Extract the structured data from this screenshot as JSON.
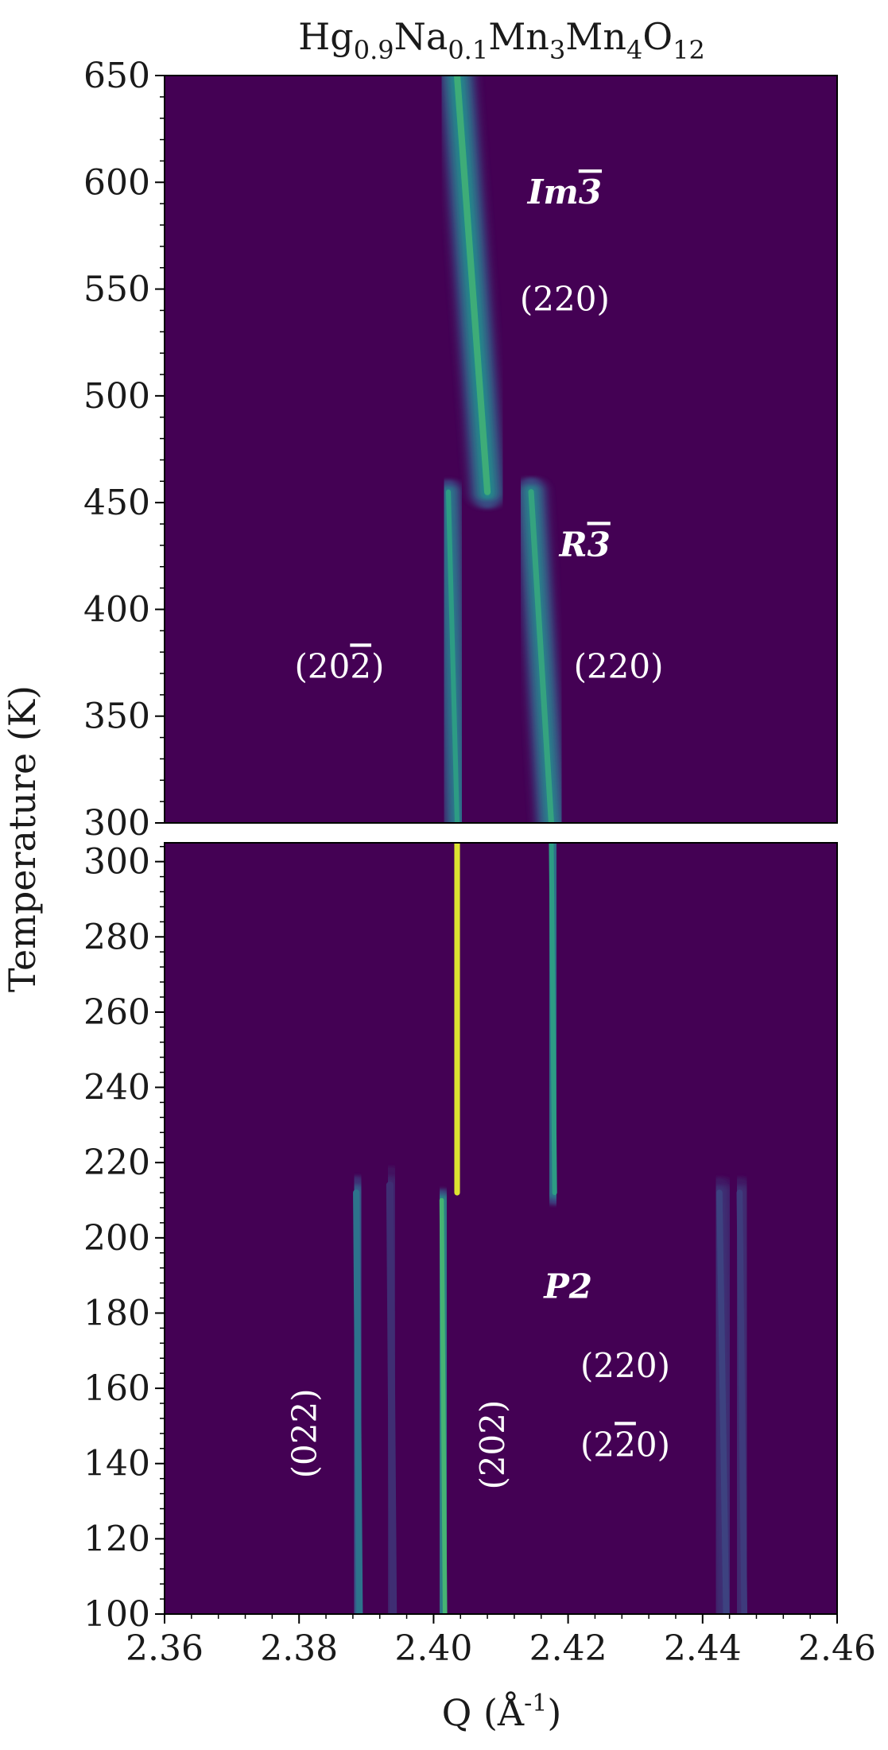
{
  "chart_data": {
    "type": "heatmap",
    "title": "Hg0.9Na0.1Mn3Mn4O12",
    "title_parts": {
      "base": "Hg",
      "s1": "0.9",
      "b2": "Na",
      "s2": "0.1",
      "b3": "Mn",
      "s3": "3",
      "b4": "Mn",
      "s4": "4",
      "b5": "O",
      "s5": "12"
    },
    "xlabel": "Q (Å-1)",
    "xlabel_parts": {
      "main": "Q (Å",
      "sup": "-1",
      "close": ")"
    },
    "ylabel": "Temperature (K)",
    "xlim": [
      2.36,
      2.46
    ],
    "x_ticks": [
      "2.36",
      "2.38",
      "2.40",
      "2.42",
      "2.44",
      "2.46"
    ],
    "x_tick_values": [
      2.36,
      2.38,
      2.4,
      2.42,
      2.44,
      2.46
    ],
    "panels": [
      {
        "name": "upper",
        "ylim": [
          300,
          650
        ],
        "y_ticks": [
          "300",
          "350",
          "400",
          "450",
          "500",
          "550",
          "600",
          "650"
        ],
        "y_tick_values": [
          300,
          350,
          400,
          450,
          500,
          550,
          600,
          650
        ]
      },
      {
        "name": "lower",
        "ylim": [
          100,
          305
        ],
        "y_ticks": [
          "100",
          "120",
          "140",
          "160",
          "180",
          "200",
          "220",
          "240",
          "260",
          "280",
          "300"
        ],
        "y_tick_values": [
          100,
          120,
          140,
          160,
          180,
          200,
          220,
          240,
          260,
          280,
          300
        ]
      }
    ],
    "colormap": [
      "#440154",
      "#3b528b",
      "#21918c",
      "#5ec962",
      "#fde725"
    ],
    "background_color": "#440154",
    "ridges": [
      {
        "peak": "(220) Im-3",
        "panel": "upper",
        "T_from": 650,
        "T_to": 455,
        "Q_from": 2.4035,
        "Q_to": 2.408,
        "intensity": 0.62,
        "width": 0.0016
      },
      {
        "peak": "(20-2) R-3",
        "panel": "upper",
        "T_from": 455,
        "T_to": 300,
        "Q_from": 2.4022,
        "Q_to": 2.4035,
        "intensity": 0.55,
        "width": 0.0012
      },
      {
        "peak": "(220) R-3",
        "panel": "upper",
        "T_from": 455,
        "T_to": 300,
        "Q_from": 2.4145,
        "Q_to": 2.4175,
        "intensity": 0.58,
        "width": 0.0014
      },
      {
        "peak": "(20-2) R-3",
        "panel": "lower",
        "T_from": 305,
        "T_to": 212,
        "Q_from": 2.4035,
        "Q_to": 2.4035,
        "intensity": 0.95,
        "width": 0.0014
      },
      {
        "peak": "(220) R-3",
        "panel": "lower",
        "T_from": 305,
        "T_to": 212,
        "Q_from": 2.4175,
        "Q_to": 2.418,
        "intensity": 0.55,
        "width": 0.0012
      },
      {
        "peak": "(202) P2",
        "panel": "lower",
        "T_from": 210,
        "T_to": 100,
        "Q_from": 2.4012,
        "Q_to": 2.4017,
        "intensity": 0.65,
        "width": 0.0011
      },
      {
        "peak": "(022) P2",
        "panel": "lower",
        "T_from": 212,
        "T_to": 100,
        "Q_from": 2.3885,
        "Q_to": 2.389,
        "intensity": 0.38,
        "width": 0.0016
      },
      {
        "peak": "(022) P2 shoulder",
        "panel": "lower",
        "T_from": 214,
        "T_to": 100,
        "Q_from": 2.3935,
        "Q_to": 2.394,
        "intensity": 0.14,
        "width": 0.0018
      },
      {
        "peak": "(220)/(2-20) P2",
        "panel": "lower",
        "T_from": 212,
        "T_to": 100,
        "Q_from": 2.4425,
        "Q_to": 2.4435,
        "intensity": 0.2,
        "width": 0.0015
      },
      {
        "peak": "(220)/(2-20) P2 b",
        "panel": "lower",
        "T_from": 212,
        "T_to": 100,
        "Q_from": 2.4455,
        "Q_to": 2.4462,
        "intensity": 0.18,
        "width": 0.0015
      }
    ],
    "annotations": [
      {
        "panel": "upper",
        "Q": 2.4195,
        "T": 590,
        "text": "Im3",
        "bar_index": 2,
        "kind": "phase"
      },
      {
        "panel": "upper",
        "Q": 2.4195,
        "T": 540,
        "text": "(220)",
        "kind": "hkl"
      },
      {
        "panel": "upper",
        "Q": 2.4225,
        "T": 425,
        "text": "R3",
        "bar_index": 1,
        "kind": "phase"
      },
      {
        "panel": "upper",
        "Q": 2.386,
        "T": 368,
        "text": "(202)",
        "bar_index": 3,
        "kind": "hkl"
      },
      {
        "panel": "upper",
        "Q": 2.4275,
        "T": 368,
        "text": "(220)",
        "kind": "hkl"
      },
      {
        "panel": "lower",
        "Q": 2.42,
        "T": 184,
        "text": "P2",
        "kind": "phase"
      },
      {
        "panel": "lower",
        "Q": 2.4285,
        "T": 163,
        "text": "(220)",
        "kind": "hkl"
      },
      {
        "panel": "lower",
        "Q": 2.4285,
        "T": 142,
        "text": "(220)",
        "bar_index": 2,
        "kind": "hkl"
      },
      {
        "panel": "lower",
        "Q": 2.3825,
        "T": 148,
        "text": "(022)",
        "rotate": true,
        "kind": "hkl"
      },
      {
        "panel": "lower",
        "Q": 2.4105,
        "T": 145,
        "text": "(202)",
        "rotate": true,
        "kind": "hkl"
      }
    ]
  }
}
